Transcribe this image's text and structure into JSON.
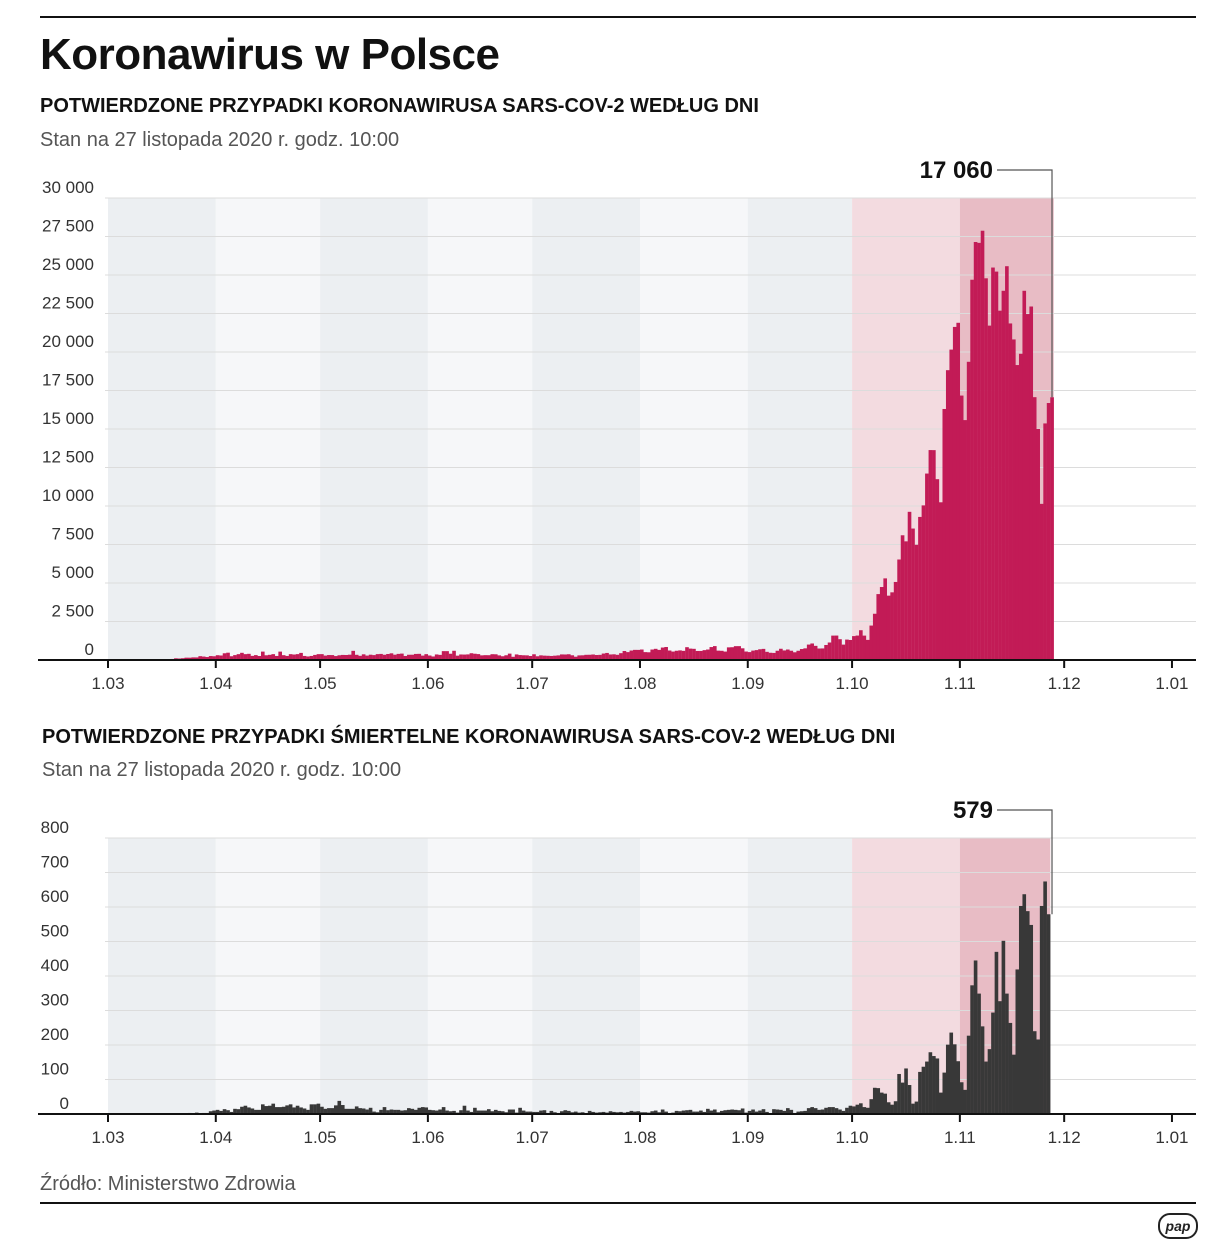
{
  "title": "Koronawirus w Polsce",
  "source": "Źródło: Ministerstwo Zdrowia",
  "logo": "pap",
  "colors": {
    "cases": "#c21b56",
    "deaths": "#383838",
    "band_dark": "#eceff2",
    "band_light": "#f6f7f9",
    "band_oct": "#f3dbe0",
    "band_nov": "#e8bcc5"
  },
  "chart_data": [
    {
      "type": "bar",
      "title": "POTWIERDZONE PRZYPADKI KORONAWIRUSA SARS-COV-2 WEDŁUG DNI",
      "subtitle": "Stan na 27 listopada 2020 r. godz. 10:00",
      "x_tick_labels": [
        "1.03",
        "1.04",
        "1.05",
        "1.06",
        "1.07",
        "1.08",
        "1.09",
        "1.10",
        "1.11",
        "1.12",
        "1.01"
      ],
      "y_tick_labels": [
        "0",
        "2 500",
        "5 000",
        "7 500",
        "10 000",
        "12 500",
        "15 000",
        "17 500",
        "20 000",
        "22 500",
        "25 000",
        "27 500",
        "30 000"
      ],
      "ylim": [
        0,
        30000
      ],
      "grid": true,
      "annotation": {
        "label": "17 060",
        "date": "2020-11-27",
        "value": 17060
      },
      "start_date": "2020-03-04",
      "values": [
        1,
        0,
        4,
        0,
        6,
        6,
        5,
        5,
        19,
        17,
        36,
        21,
        52,
        61,
        49,
        68,
        111,
        98,
        115,
        152,
        150,
        170,
        168,
        249,
        224,
        193,
        256,
        243,
        311,
        292,
        437,
        475,
        244,
        318,
        379,
        467,
        380,
        401,
        268,
        318,
        260,
        545,
        306,
        336,
        380,
        263,
        545,
        313,
        263,
        380,
        355,
        381,
        461,
        263,
        230,
        263,
        330,
        380,
        381,
        286,
        322,
        319,
        256,
        307,
        330,
        325,
        345,
        595,
        337,
        272,
        369,
        286,
        344,
        318,
        381,
        395,
        340,
        390,
        434,
        344,
        397,
        416,
        262,
        340,
        343,
        394,
        400,
        285,
        380,
        292,
        230,
        361,
        333,
        576,
        575,
        407,
        599,
        282,
        359,
        353,
        364,
        440,
        407,
        383,
        302,
        314,
        311,
        377,
        371,
        300,
        244,
        307,
        414,
        209,
        362,
        320,
        307,
        301,
        261,
        371,
        243,
        302,
        283,
        274,
        262,
        280,
        299,
        363,
        358,
        374,
        306,
        214,
        299,
        305,
        337,
        340,
        358,
        324,
        334,
        419,
        458,
        360,
        370,
        337,
        443,
        584,
        512,
        615,
        658,
        657,
        680,
        512,
        501,
        680,
        726,
        658,
        809,
        843,
        616,
        548,
        600,
        624,
        594,
        832,
        740,
        726,
        587,
        588,
        640,
        680,
        840,
        903,
        608,
        598,
        547,
        820,
        830,
        898,
        900,
        759,
        550,
        513,
        610,
        643,
        697,
        722,
        530,
        470,
        459,
        601,
        730,
        621,
        681,
        603,
        501,
        600,
        712,
        757,
        1002,
        1073,
        919,
        746,
        751,
        975,
        1136,
        1584,
        1587,
        1350,
        1000,
        1326,
        1300,
        1552,
        1587,
        1934,
        1584,
        1306,
        2236,
        3003,
        4280,
        4739,
        5300,
        4178,
        4394,
        5068,
        6526,
        8099,
        7705,
        9622,
        8536,
        7482,
        9291,
        10040,
        12107,
        13632,
        13628,
        11742,
        10241,
        16300,
        18820,
        20156,
        21629,
        21897,
        17171,
        15578,
        19364,
        24692,
        27143,
        27086,
        27875,
        24785,
        21713,
        25484,
        25221,
        22683,
        23975,
        25571,
        21854,
        20816,
        19152,
        19883,
        23975,
        22464,
        22954,
        17067,
        15002,
        10139,
        15362,
        16687,
        17060
      ]
    },
    {
      "type": "bar",
      "title": "POTWIERDZONE PRZYPADKI ŚMIERTELNE KORONAWIRUSA SARS-COV-2 WEDŁUG DNI",
      "subtitle": "Stan na 27 listopada 2020 r. godz. 10:00",
      "x_tick_labels": [
        "1.03",
        "1.04",
        "1.05",
        "1.06",
        "1.07",
        "1.08",
        "1.09",
        "1.10",
        "1.11",
        "1.12",
        "1.01"
      ],
      "y_tick_labels": [
        "0",
        "100",
        "200",
        "300",
        "400",
        "500",
        "600",
        "700",
        "800"
      ],
      "ylim": [
        0,
        800
      ],
      "grid": true,
      "annotation": {
        "label": "579",
        "date": "2020-11-27",
        "value": 579
      },
      "start_date": "2020-03-04",
      "values": [
        0,
        0,
        0,
        0,
        0,
        0,
        0,
        0,
        2,
        1,
        0,
        0,
        0,
        2,
        2,
        0,
        2,
        1,
        1,
        2,
        3,
        2,
        4,
        2,
        3,
        3,
        8,
        10,
        12,
        9,
        14,
        11,
        6,
        15,
        14,
        21,
        24,
        19,
        16,
        12,
        12,
        28,
        23,
        24,
        30,
        20,
        20,
        21,
        25,
        28,
        19,
        24,
        19,
        16,
        12,
        28,
        28,
        30,
        21,
        15,
        17,
        17,
        25,
        38,
        26,
        15,
        15,
        15,
        22,
        17,
        16,
        13,
        18,
        7,
        5,
        12,
        20,
        11,
        13,
        12,
        12,
        10,
        11,
        17,
        15,
        12,
        18,
        20,
        19,
        12,
        11,
        10,
        13,
        20,
        10,
        8,
        9,
        4,
        11,
        24,
        10,
        6,
        18,
        10,
        10,
        10,
        14,
        8,
        12,
        9,
        8,
        5,
        13,
        13,
        4,
        18,
        10,
        7,
        7,
        6,
        6,
        10,
        11,
        3,
        9,
        5,
        3,
        8,
        11,
        9,
        5,
        7,
        4,
        5,
        2,
        9,
        6,
        4,
        5,
        6,
        4,
        8,
        6,
        5,
        6,
        4,
        6,
        9,
        7,
        8,
        5,
        5,
        4,
        8,
        10,
        5,
        13,
        7,
        3,
        4,
        9,
        8,
        10,
        11,
        12,
        7,
        7,
        10,
        6,
        15,
        10,
        13,
        5,
        9,
        11,
        12,
        13,
        12,
        11,
        16,
        4,
        9,
        13,
        7,
        10,
        14,
        6,
        2,
        14,
        13,
        12,
        9,
        17,
        12,
        3,
        7,
        8,
        9,
        17,
        20,
        17,
        12,
        13,
        18,
        20,
        20,
        17,
        13,
        9,
        18,
        24,
        22,
        27,
        31,
        20,
        18,
        43,
        76,
        75,
        62,
        59,
        34,
        27,
        37,
        116,
        91,
        132,
        84,
        30,
        36,
        122,
        137,
        152,
        179,
        168,
        161,
        62,
        120,
        201,
        236,
        202,
        153,
        92,
        70,
        227,
        373,
        445,
        349,
        254,
        152,
        188,
        294,
        470,
        327,
        502,
        349,
        264,
        172,
        419,
        603,
        637,
        588,
        548,
        240,
        216,
        603,
        674,
        579
      ]
    }
  ]
}
